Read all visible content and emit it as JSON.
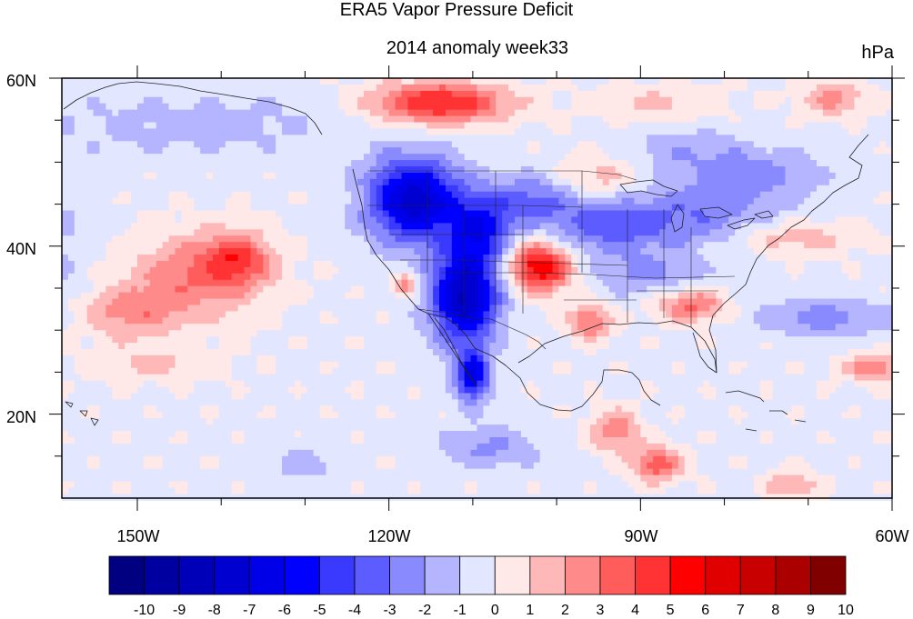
{
  "title": "ERA5 Vapor Pressure Deficit",
  "subtitle": "2014 anomaly week33",
  "units": "hPa",
  "lat_labels": [
    "60N",
    "40N",
    "20N"
  ],
  "lon_labels": [
    "150W",
    "120W",
    "90W",
    "60W"
  ],
  "colorbar": {
    "labels": [
      "-10",
      "-9",
      "-8",
      "-7",
      "-6",
      "-5",
      "-4",
      "-3",
      "-2",
      "-1",
      "0",
      "1",
      "2",
      "3",
      "4",
      "5",
      "6",
      "7",
      "8",
      "9",
      "10"
    ],
    "colors": [
      "#000080",
      "#0000a0",
      "#0000b8",
      "#0000d0",
      "#0000e8",
      "#0000ff",
      "#3a3aff",
      "#5c5cff",
      "#8a8aff",
      "#b4b4ff",
      "#e2e6ff",
      "#ffe8e8",
      "#ffb8b8",
      "#ff8a8a",
      "#ff5c5c",
      "#ff3333",
      "#ff0000",
      "#e00000",
      "#c80000",
      "#aa0000",
      "#800000"
    ]
  },
  "chart_data": {
    "type": "heatmap",
    "title": "ERA5 Vapor Pressure Deficit",
    "subtitle": "2014 anomaly week33",
    "units": "hPa",
    "lon_range": [
      -159,
      -60
    ],
    "lat_range": [
      10,
      60
    ],
    "levels": [
      -10,
      -9,
      -8,
      -7,
      -6,
      -5,
      -4,
      -3,
      -2,
      -1,
      0,
      1,
      2,
      3,
      4,
      5,
      6,
      7,
      8,
      9,
      10
    ],
    "background_anomaly": 0.3,
    "features": [
      {
        "lon": -117,
        "lat": 45.5,
        "rlon": 5.5,
        "rlat": 5.0,
        "v": -7.5
      },
      {
        "lon": -111,
        "lat": 34.0,
        "rlon": 4.0,
        "rlat": 5.5,
        "v": -8.0
      },
      {
        "lon": -109,
        "lat": 42.0,
        "rlon": 3.5,
        "rlat": 4.0,
        "v": -4.5
      },
      {
        "lon": -110,
        "lat": 24.5,
        "rlon": 2.0,
        "rlat": 3.0,
        "v": -6.0
      },
      {
        "lon": -103,
        "lat": 45.5,
        "rlon": 5.5,
        "rlat": 3.0,
        "v": -3.0
      },
      {
        "lon": -94,
        "lat": 42.5,
        "rlon": 7.0,
        "rlat": 3.5,
        "v": -3.0
      },
      {
        "lon": -83,
        "lat": 43.5,
        "rlon": 9.0,
        "rlat": 4.0,
        "v": -2.5
      },
      {
        "lon": -89,
        "lat": 36.5,
        "rlon": 6.0,
        "rlat": 2.5,
        "v": -2.0
      },
      {
        "lon": -76,
        "lat": 48.5,
        "rlon": 8.0,
        "rlat": 3.0,
        "v": -2.0
      },
      {
        "lon": -85,
        "lat": 51.5,
        "rlon": 8.0,
        "rlat": 2.5,
        "v": -1.5
      },
      {
        "lon": -68,
        "lat": 31.5,
        "rlon": 8.0,
        "rlat": 2.0,
        "v": -2.5
      },
      {
        "lon": -108,
        "lat": 16.0,
        "rlon": 6.0,
        "rlat": 2.5,
        "v": -2.0
      },
      {
        "lon": -130,
        "lat": 14.0,
        "rlon": 4.0,
        "rlat": 2.0,
        "v": -1.5
      },
      {
        "lon": -143,
        "lat": 54.5,
        "rlon": 20.0,
        "rlat": 4.0,
        "v": -1.2
      },
      {
        "lon": -159,
        "lat": 40.0,
        "rlon": 4.0,
        "rlat": 8.0,
        "v": -1.0
      },
      {
        "lon": -114,
        "lat": 57.0,
        "rlon": 8.0,
        "rlat": 2.5,
        "v": 5.5
      },
      {
        "lon": -102,
        "lat": 37.5,
        "rlon": 3.5,
        "rlat": 2.8,
        "v": 6.5
      },
      {
        "lon": -96,
        "lat": 31.0,
        "rlon": 2.5,
        "rlat": 2.0,
        "v": 3.5
      },
      {
        "lon": -84,
        "lat": 33.0,
        "rlon": 4.0,
        "rlat": 2.0,
        "v": 3.5
      },
      {
        "lon": -118,
        "lat": 35.5,
        "rlon": 1.5,
        "rlat": 1.5,
        "v": 3.0
      },
      {
        "lon": -95,
        "lat": 48.0,
        "rlon": 5.0,
        "rlat": 3.0,
        "v": 2.0
      },
      {
        "lon": -143,
        "lat": 36.5,
        "rlon": 8.0,
        "rlat": 5.0,
        "v": 3.0
      },
      {
        "lon": -138,
        "lat": 38.5,
        "rlon": 4.0,
        "rlat": 3.0,
        "v": 3.5
      },
      {
        "lon": -151,
        "lat": 32.0,
        "rlon": 6.0,
        "rlat": 3.0,
        "v": 2.5
      },
      {
        "lon": -148,
        "lat": 26.0,
        "rlon": 8.0,
        "rlat": 2.0,
        "v": 1.5
      },
      {
        "lon": -93,
        "lat": 18.0,
        "rlon": 3.0,
        "rlat": 2.5,
        "v": 3.0
      },
      {
        "lon": -88,
        "lat": 14.0,
        "rlon": 3.0,
        "rlat": 2.0,
        "v": 4.0
      },
      {
        "lon": -62,
        "lat": 25.5,
        "rlon": 4.0,
        "rlat": 1.5,
        "v": 3.0
      },
      {
        "lon": -67,
        "lat": 57.5,
        "rlon": 4.0,
        "rlat": 2.0,
        "v": 2.5
      },
      {
        "lon": -72,
        "lat": 41.0,
        "rlon": 8.0,
        "rlat": 2.0,
        "v": 2.0
      },
      {
        "lon": -88,
        "lat": 57.0,
        "rlon": 8.0,
        "rlat": 2.0,
        "v": 1.5
      },
      {
        "lon": -72,
        "lat": 11.5,
        "rlon": 3.0,
        "rlat": 1.5,
        "v": 2.5
      }
    ]
  }
}
